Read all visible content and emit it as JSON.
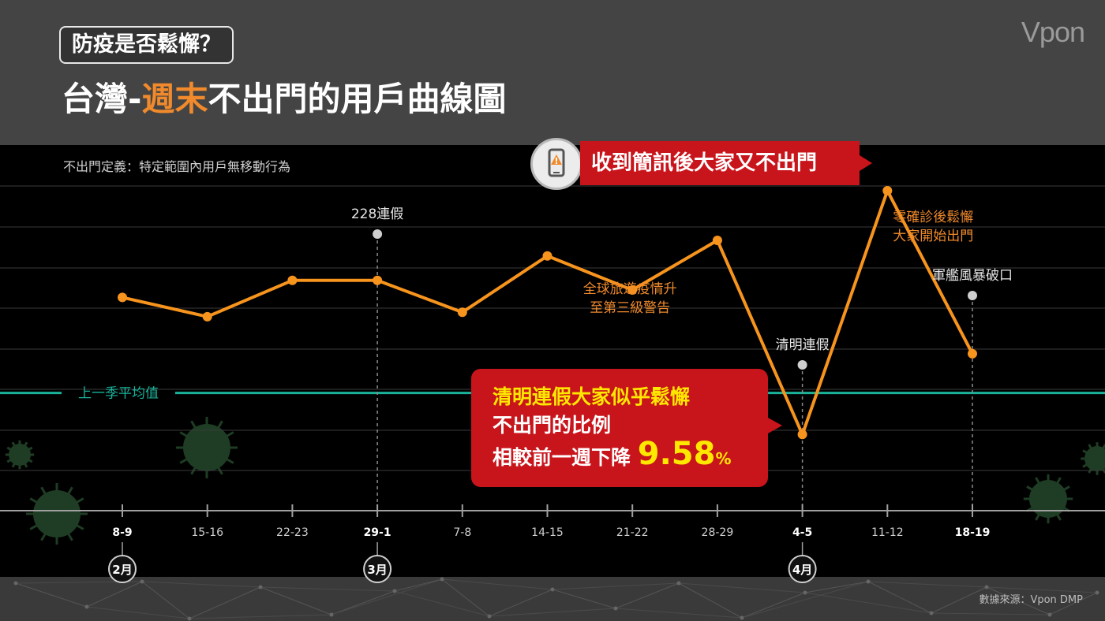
{
  "header": {
    "subtitle": "防疫是否鬆懈？",
    "title_prefix": "台灣-",
    "title_highlight": "週末",
    "title_suffix": "不出門的用戶曲線圖",
    "brand": "Vpon"
  },
  "definition": "不出門定義：特定範圍內用戶無移動行為",
  "source": "數據來源：Vpon DMP",
  "callouts": {
    "top": "收到簡訊後大家又不出門",
    "main_line1": "清明連假大家似乎鬆懈",
    "main_line2": "不出門的比例",
    "main_line3_prefix": "相較前一週下降",
    "main_value": "9.58",
    "main_unit": "%"
  },
  "colors": {
    "line": "#f7941d",
    "average": "#19b39b",
    "callout": "#c8141b",
    "highlight": "#ffe800",
    "annotation_orange": "#f08a2c"
  },
  "chart_data": {
    "type": "line",
    "categories": [
      "8-9",
      "15-16",
      "22-23",
      "29-1",
      "7-8",
      "14-15",
      "21-22",
      "28-29",
      "4-5",
      "11-12",
      "18-19"
    ],
    "bold_categories": [
      "8-9",
      "29-1",
      "4-5",
      "18-19"
    ],
    "month_markers": [
      {
        "category": "8-9",
        "label": "2月"
      },
      {
        "category": "29-1",
        "label": "3月"
      },
      {
        "category": "4-5",
        "label": "4月"
      }
    ],
    "values": [
      0.58,
      0.528,
      0.626,
      0.626,
      0.54,
      0.692,
      0.6,
      0.734,
      0.21,
      0.868,
      0.428
    ],
    "average_label": "上一季平均值",
    "average_value": 0.322,
    "ylim": [
      0,
      1
    ],
    "grid": true,
    "annotations": [
      {
        "category": "29-1",
        "text": "228連假",
        "color": "#e6e6e6",
        "marker": true
      },
      {
        "category": "4-5",
        "text": "清明連假",
        "color": "#e6e6e6",
        "marker": true
      },
      {
        "category": "18-19",
        "text": "軍艦風暴破口",
        "color": "#e6e6e6",
        "marker": true
      },
      {
        "category": "21-22",
        "text": "全球旅遊疫情升",
        "text2": "至第三級警告",
        "color": "#f08a2c",
        "marker": false
      },
      {
        "category": "11-12",
        "text": "零確診後鬆懈",
        "text2": "大家開始出門",
        "color": "#f08a2c",
        "marker": false
      }
    ]
  }
}
